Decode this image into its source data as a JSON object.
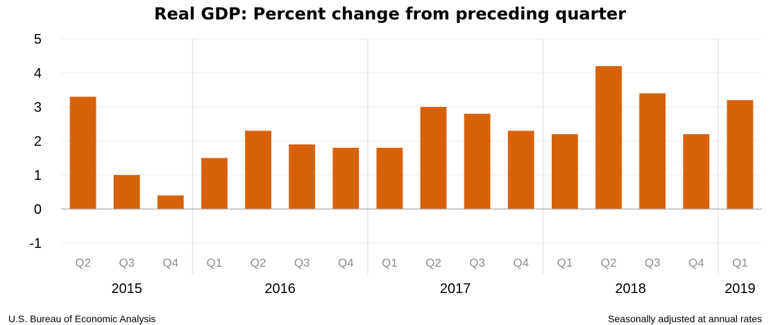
{
  "chart_data": {
    "type": "bar",
    "title": "Real GDP:  Percent change from preceding quarter",
    "categories": [
      "Q2",
      "Q3",
      "Q4",
      "Q1",
      "Q2",
      "Q3",
      "Q4",
      "Q1",
      "Q2",
      "Q3",
      "Q4",
      "Q1",
      "Q2",
      "Q3",
      "Q4",
      "Q1"
    ],
    "years": [
      {
        "label": "2015",
        "start": 0,
        "end": 2
      },
      {
        "label": "2016",
        "start": 3,
        "end": 6
      },
      {
        "label": "2017",
        "start": 7,
        "end": 10
      },
      {
        "label": "2018",
        "start": 11,
        "end": 14
      },
      {
        "label": "2019",
        "start": 15,
        "end": 15
      }
    ],
    "values": [
      3.3,
      1.0,
      0.4,
      1.5,
      2.3,
      1.9,
      1.8,
      1.8,
      3.0,
      2.8,
      2.3,
      2.2,
      4.2,
      3.4,
      2.2,
      3.2
    ],
    "ylim": [
      -1,
      5
    ],
    "yticks": [
      "5",
      "4",
      "3",
      "2",
      "1",
      "0",
      "-1"
    ],
    "grid": true,
    "bar_color": "#d8620c"
  },
  "footer": {
    "source": "U.S. Bureau of Economic Analysis",
    "note": "Seasonally adjusted at annual rates"
  }
}
